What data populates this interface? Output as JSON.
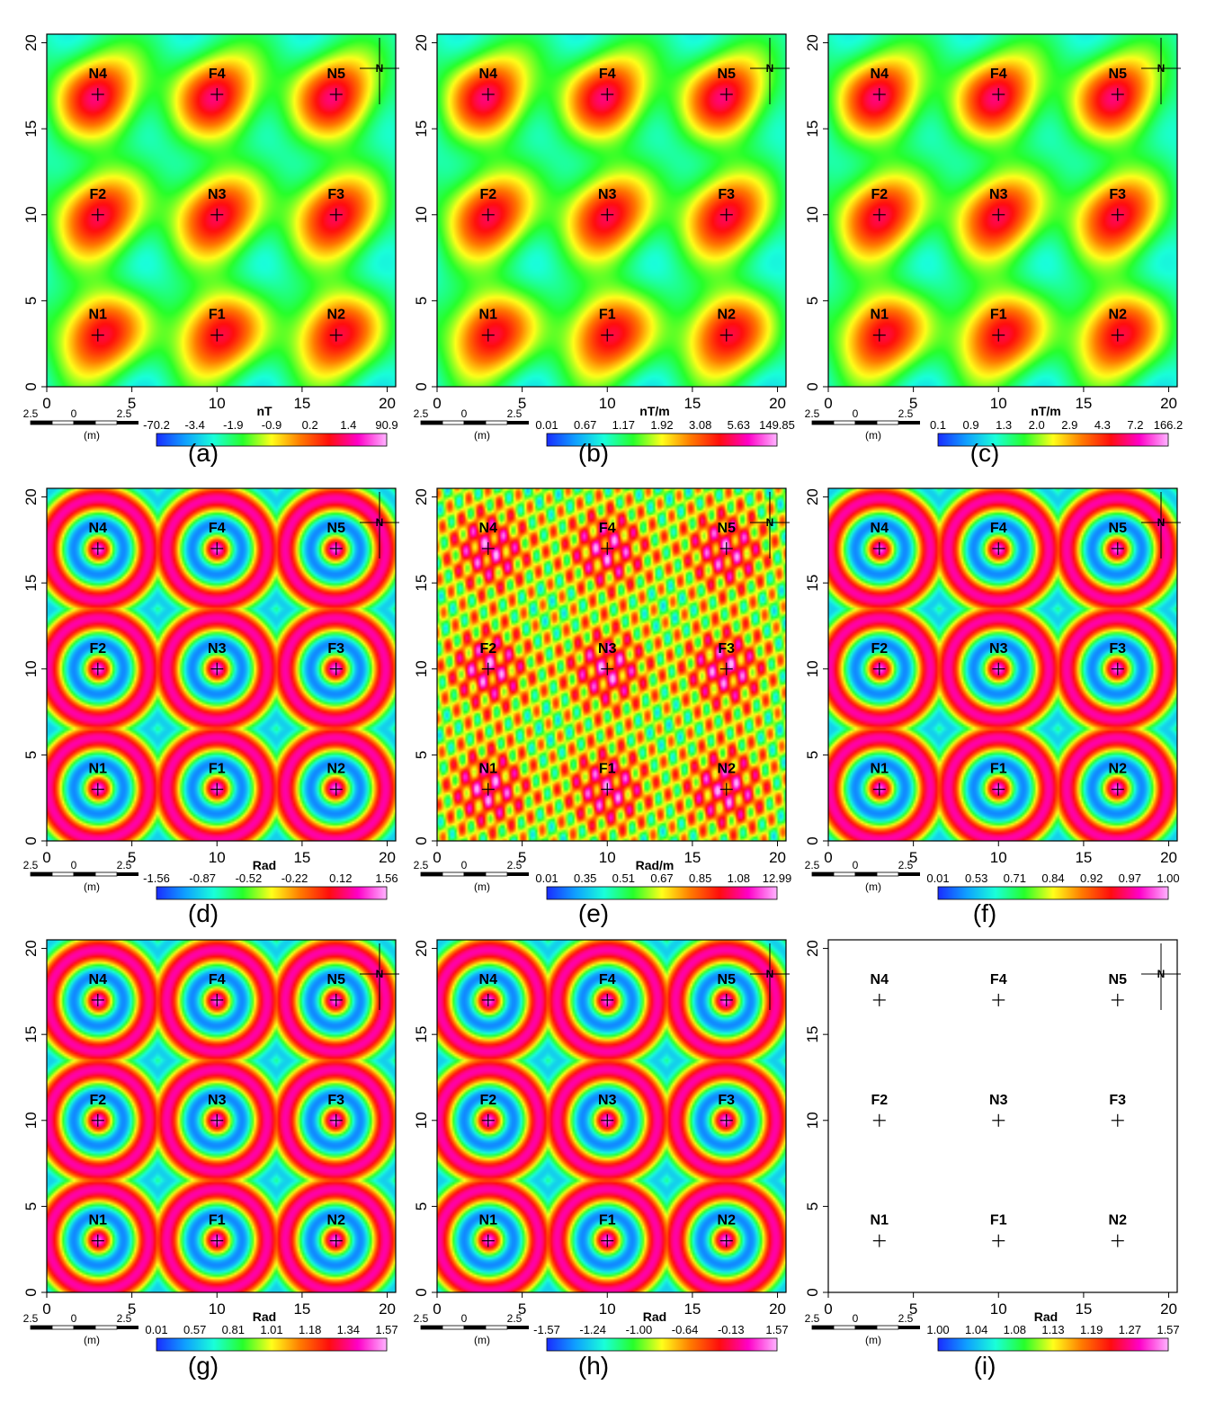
{
  "figure": {
    "panels": [
      {
        "letter": "(a)",
        "unit": "nT",
        "cbar_ticks": [
          "-70.2",
          "-3.4",
          "-1.9",
          "-0.9",
          "0.2",
          "1.4",
          "90.9"
        ],
        "style": "smooth"
      },
      {
        "letter": "(b)",
        "unit": "nT/m",
        "cbar_ticks": [
          "0.01",
          "0.67",
          "1.17",
          "1.92",
          "3.08",
          "5.63",
          "149.85"
        ],
        "style": "smooth"
      },
      {
        "letter": "(c)",
        "unit": "nT/m",
        "cbar_ticks": [
          "0.1",
          "0.9",
          "1.3",
          "2.0",
          "2.9",
          "4.3",
          "7.2",
          "166.2"
        ],
        "style": "smooth"
      },
      {
        "letter": "(d)",
        "unit": "Rad",
        "cbar_ticks": [
          "-1.56",
          "-0.87",
          "-0.52",
          "-0.22",
          "0.12",
          "1.56"
        ],
        "style": "rings"
      },
      {
        "letter": "(e)",
        "unit": "Rad/m",
        "cbar_ticks": [
          "0.01",
          "0.35",
          "0.51",
          "0.67",
          "0.85",
          "1.08",
          "12.99"
        ],
        "style": "noisy"
      },
      {
        "letter": "(f)",
        "unit": "",
        "cbar_ticks": [
          "0.01",
          "0.53",
          "0.71",
          "0.84",
          "0.92",
          "0.97",
          "1.00"
        ],
        "style": "rings"
      },
      {
        "letter": "(g)",
        "unit": "Rad",
        "cbar_ticks": [
          "0.01",
          "0.57",
          "0.81",
          "1.01",
          "1.18",
          "1.34",
          "1.57"
        ],
        "style": "rings"
      },
      {
        "letter": "(h)",
        "unit": "Rad",
        "cbar_ticks": [
          "-1.57",
          "-1.24",
          "-1.00",
          "-0.64",
          "-0.13",
          "1.57"
        ],
        "style": "rings"
      },
      {
        "letter": "(i)",
        "unit": "Rad",
        "cbar_ticks": [
          "1.00",
          "1.04",
          "1.08",
          "1.13",
          "1.19",
          "1.27",
          "1.57"
        ],
        "style": "sparse"
      }
    ],
    "axis_ticks": [
      "0",
      "5",
      "10",
      "15",
      "20"
    ],
    "source_labels": [
      "N1",
      "N2",
      "N3",
      "N4",
      "N5",
      "F1",
      "F2",
      "F3",
      "F4"
    ],
    "scale_bar": {
      "ticks": [
        "2.5",
        "0",
        "2.5"
      ],
      "unit": "(m)"
    },
    "north_label": "N",
    "colors": {
      "ramp": [
        "#1a2cff",
        "#0fa0ff",
        "#19ffd9",
        "#26ff2a",
        "#ffff1a",
        "#ff7a00",
        "#ff0d0d",
        "#ff00c8",
        "#ffb3ff"
      ]
    }
  },
  "chart_data": [
    {
      "type": "heatmap",
      "panel": "(a)",
      "unit": "nT",
      "x_range": [
        0,
        20
      ],
      "y_range": [
        0,
        20
      ],
      "colorbar": [
        "-70.2",
        "-3.4",
        "-1.9",
        "-0.9",
        "0.2",
        "1.4",
        "90.9"
      ]
    },
    {
      "type": "heatmap",
      "panel": "(b)",
      "unit": "nT/m",
      "x_range": [
        0,
        20
      ],
      "y_range": [
        0,
        20
      ],
      "colorbar": [
        "0.01",
        "0.67",
        "1.17",
        "1.92",
        "3.08",
        "5.63",
        "149.85"
      ]
    },
    {
      "type": "heatmap",
      "panel": "(c)",
      "unit": "nT/m",
      "x_range": [
        0,
        20
      ],
      "y_range": [
        0,
        20
      ],
      "colorbar": [
        "0.1",
        "0.9",
        "1.3",
        "2.0",
        "2.9",
        "4.3",
        "7.2",
        "166.2"
      ]
    },
    {
      "type": "heatmap",
      "panel": "(d)",
      "unit": "Rad",
      "x_range": [
        0,
        20
      ],
      "y_range": [
        0,
        20
      ],
      "colorbar": [
        "-1.56",
        "-0.87",
        "-0.52",
        "-0.22",
        "0.12",
        "1.56"
      ]
    },
    {
      "type": "heatmap",
      "panel": "(e)",
      "unit": "Rad/m",
      "x_range": [
        0,
        20
      ],
      "y_range": [
        0,
        20
      ],
      "colorbar": [
        "0.01",
        "0.35",
        "0.51",
        "0.67",
        "0.85",
        "1.08",
        "12.99"
      ]
    },
    {
      "type": "heatmap",
      "panel": "(f)",
      "x_range": [
        0,
        20
      ],
      "y_range": [
        0,
        20
      ],
      "colorbar": [
        "0.01",
        "0.53",
        "0.71",
        "0.84",
        "0.92",
        "0.97",
        "1.00"
      ]
    },
    {
      "type": "heatmap",
      "panel": "(g)",
      "unit": "Rad",
      "x_range": [
        0,
        20
      ],
      "y_range": [
        0,
        20
      ],
      "colorbar": [
        "0.01",
        "0.57",
        "0.81",
        "1.01",
        "1.18",
        "1.34",
        "1.57"
      ]
    },
    {
      "type": "heatmap",
      "panel": "(h)",
      "unit": "Rad",
      "x_range": [
        0,
        20
      ],
      "y_range": [
        0,
        20
      ],
      "colorbar": [
        "-1.57",
        "-1.24",
        "-1.00",
        "-0.64",
        "-0.13",
        "1.57"
      ]
    },
    {
      "type": "heatmap",
      "panel": "(i)",
      "unit": "Rad",
      "x_range": [
        0,
        20
      ],
      "y_range": [
        0,
        20
      ],
      "colorbar": [
        "1.00",
        "1.04",
        "1.08",
        "1.13",
        "1.19",
        "1.27",
        "1.57"
      ]
    }
  ],
  "sources": [
    {
      "label": "N1",
      "x": 3,
      "y": 3
    },
    {
      "label": "F1",
      "x": 10,
      "y": 3
    },
    {
      "label": "N2",
      "x": 17,
      "y": 3
    },
    {
      "label": "F2",
      "x": 3,
      "y": 10
    },
    {
      "label": "N3",
      "x": 10,
      "y": 10
    },
    {
      "label": "F3",
      "x": 17,
      "y": 10
    },
    {
      "label": "N4",
      "x": 3,
      "y": 17
    },
    {
      "label": "F4",
      "x": 10,
      "y": 17
    },
    {
      "label": "N5",
      "x": 17,
      "y": 17
    }
  ]
}
